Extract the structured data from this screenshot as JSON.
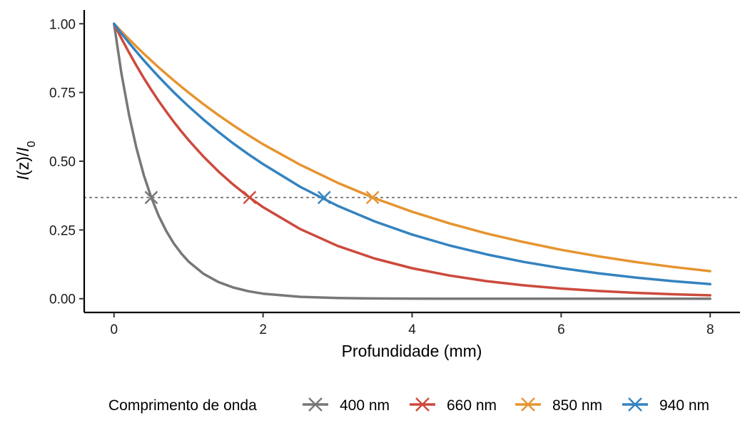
{
  "chart_data": {
    "type": "line",
    "title": "",
    "xlabel": "Profundidade (mm)",
    "ylabel": {
      "italic_1": "I",
      "mid": "(z)/",
      "italic_2": "I",
      "sub": "0"
    },
    "xlim": [
      -0.4,
      8.4
    ],
    "ylim": [
      -0.05,
      1.05
    ],
    "x_ticks": [
      0,
      2,
      4,
      6,
      8
    ],
    "x_tick_labels": [
      "0",
      "2",
      "4",
      "6",
      "8"
    ],
    "y_ticks": [
      0,
      0.25,
      0.5,
      0.75,
      1.0
    ],
    "y_tick_labels": [
      "0.00",
      "0.25",
      "0.50",
      "0.75",
      "1.00"
    ],
    "grid": false,
    "reference_line": {
      "y": 0.368,
      "style": "dotted",
      "color": "#777777"
    },
    "legend": {
      "title": "Comprimento de onda",
      "placement": "bottom"
    },
    "x": [
      0,
      0.1,
      0.2,
      0.3,
      0.4,
      0.5,
      0.6,
      0.7,
      0.8,
      0.9,
      1.0,
      1.2,
      1.4,
      1.6,
      1.8,
      2.0,
      2.5,
      3.0,
      3.5,
      4.0,
      4.5,
      5.0,
      5.5,
      6.0,
      6.5,
      7.0,
      7.5,
      8.0
    ],
    "series": [
      {
        "name": "400 nm",
        "color": "#777777",
        "values": [
          1.0,
          0.8187,
          0.6703,
          0.5488,
          0.4493,
          0.3679,
          0.3012,
          0.2466,
          0.2019,
          0.1653,
          0.1353,
          0.0907,
          0.0608,
          0.0408,
          0.0273,
          0.0183,
          0.0067,
          0.0025,
          0.0009,
          0.0003,
          0.0001,
          0.0,
          0.0,
          0.0,
          0.0,
          0.0,
          0.0,
          0.0
        ],
        "marker": {
          "x": 0.5,
          "y": 0.368
        }
      },
      {
        "name": "660 nm",
        "color": "#CC4A3D",
        "values": [
          1.0,
          0.9465,
          0.8958,
          0.8479,
          0.8025,
          0.7596,
          0.719,
          0.6805,
          0.6441,
          0.6096,
          0.577,
          0.5169,
          0.463,
          0.4148,
          0.3716,
          0.3329,
          0.2531,
          0.1921,
          0.146,
          0.1108,
          0.0843,
          0.0639,
          0.0486,
          0.0369,
          0.028,
          0.0213,
          0.0162,
          0.0123
        ],
        "marker": {
          "x": 1.82,
          "y": 0.368
        }
      },
      {
        "name": "850 nm",
        "color": "#E69430",
        "values": [
          1.0,
          0.9716,
          0.944,
          0.9172,
          0.8911,
          0.8658,
          0.8412,
          0.8173,
          0.7941,
          0.7715,
          0.7496,
          0.7076,
          0.6679,
          0.6305,
          0.5952,
          0.5618,
          0.4867,
          0.4216,
          0.3652,
          0.3163,
          0.2741,
          0.2373,
          0.2057,
          0.1778,
          0.1542,
          0.1334,
          0.1155,
          0.1001
        ],
        "marker": {
          "x": 3.47,
          "y": 0.368
        }
      },
      {
        "name": "940 nm",
        "color": "#3483C0",
        "values": [
          1.0,
          0.9649,
          0.931,
          0.8984,
          0.8669,
          0.8365,
          0.8071,
          0.7788,
          0.7515,
          0.7251,
          0.6997,
          0.6514,
          0.6065,
          0.5647,
          0.5257,
          0.4895,
          0.4066,
          0.3379,
          0.2807,
          0.2333,
          0.1939,
          0.1611,
          0.1338,
          0.1112,
          0.0924,
          0.0768,
          0.0638,
          0.053
        ],
        "marker": {
          "x": 2.82,
          "y": 0.368
        }
      }
    ]
  }
}
